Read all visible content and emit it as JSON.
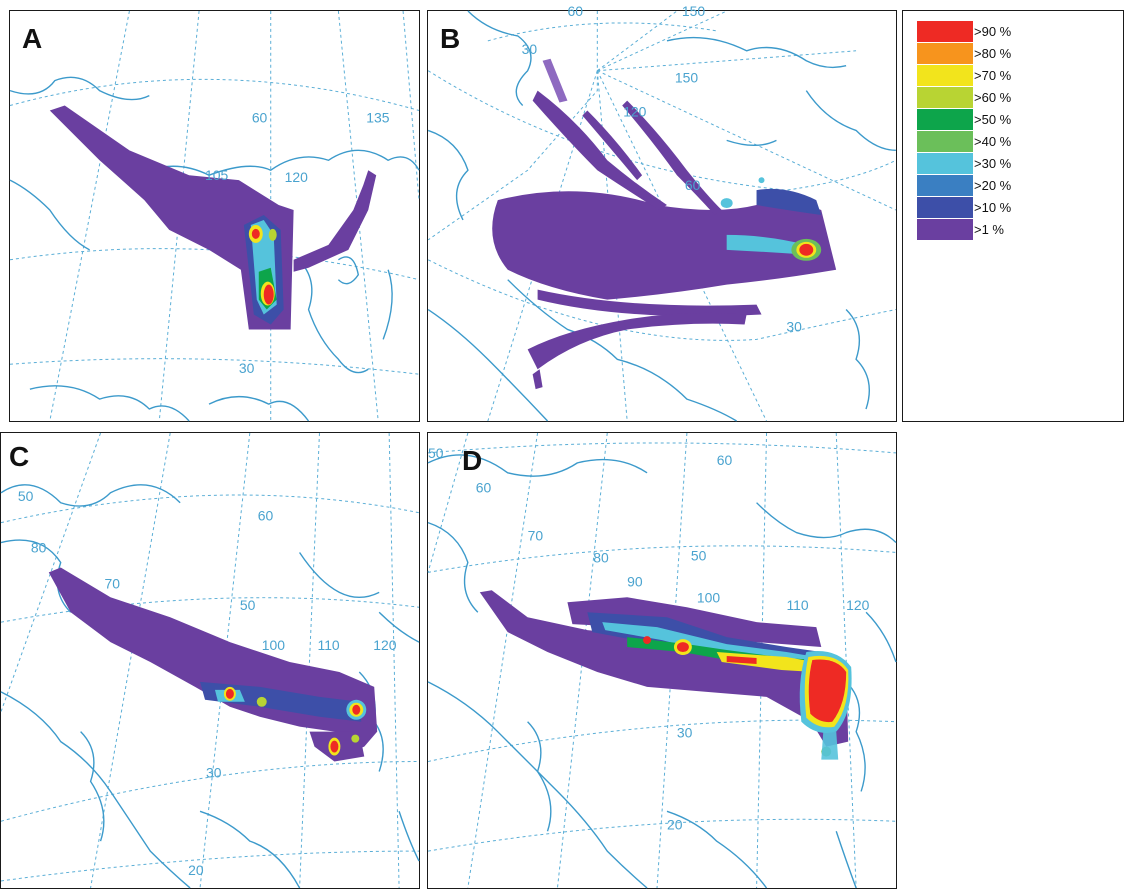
{
  "panels": [
    {
      "letter": "A",
      "grid_labels": [
        "60",
        "105",
        "120",
        "135",
        "30"
      ]
    },
    {
      "letter": "B",
      "grid_labels": [
        "30",
        "60",
        "150",
        "150",
        "120",
        "60",
        "30"
      ]
    },
    {
      "letter": "C",
      "grid_labels": [
        "50",
        "60",
        "80",
        "70",
        "50",
        "100",
        "110",
        "120",
        "30",
        "20"
      ]
    },
    {
      "letter": "D",
      "grid_labels": [
        "50",
        "60",
        "60",
        "70",
        "80",
        "50",
        "90",
        "100",
        "110",
        "120",
        "30",
        "20"
      ]
    }
  ],
  "legend": {
    "items": [
      {
        "label": ">90 %",
        "color": "#ee2a24"
      },
      {
        "label": ">80 %",
        "color": "#f7941d"
      },
      {
        "label": ">70 %",
        "color": "#f2e41c"
      },
      {
        "label": ">60 %",
        "color": "#b8d433"
      },
      {
        "label": ">50 %",
        "color": "#0da54b"
      },
      {
        "label": ">40 %",
        "color": "#6bbf5a"
      },
      {
        "label": ">30 %",
        "color": "#55c3dc"
      },
      {
        "label": ">20 %",
        "color": "#3a7fc2"
      },
      {
        "label": ">10 %",
        "color": "#3d4fa8"
      },
      {
        "label": ">1 %",
        "color": "#6a3fa0"
      }
    ]
  }
}
